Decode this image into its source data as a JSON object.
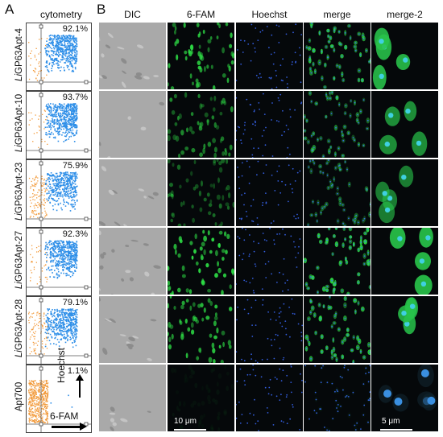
{
  "panel_a": {
    "letter": "A",
    "header": "cytometry",
    "rows": [
      {
        "label_italic": "Li",
        "label_rest": "GP63Apt-4",
        "percent": "92.1%",
        "positive_fraction": 0.921
      },
      {
        "label_italic": "Li",
        "label_rest": "GP63Apt-10",
        "percent": "93.7%",
        "positive_fraction": 0.937
      },
      {
        "label_italic": "Li",
        "label_rest": "GP63Apt-23",
        "percent": "75.9%",
        "positive_fraction": 0.759
      },
      {
        "label_italic": "Li",
        "label_rest": "GP63Apt-27",
        "percent": "92.3%",
        "positive_fraction": 0.923
      },
      {
        "label_italic": "Li",
        "label_rest": "GP63Apt-28",
        "percent": "79.1%",
        "positive_fraction": 0.791
      },
      {
        "label_italic": "",
        "label_rest": "Apt700",
        "percent": "1.1%",
        "positive_fraction": 0.011
      }
    ],
    "y_axis_label": "Hoechst",
    "x_axis_label": "6-FAM",
    "colors": {
      "negative": "#f29a3a",
      "positive": "#2f8fe8"
    }
  },
  "panel_b": {
    "letter": "B",
    "columns": [
      "DIC",
      "6-FAM",
      "Hoechst",
      "merge",
      "merge-2"
    ],
    "scale_bars": {
      "left": "10 μm",
      "right": "5 μm"
    },
    "row_intensity": [
      0.9,
      0.6,
      0.45,
      0.95,
      0.85,
      0.05
    ]
  }
}
